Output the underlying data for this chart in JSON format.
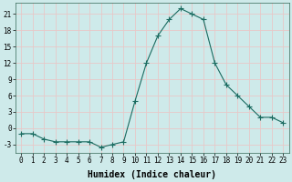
{
  "x": [
    0,
    1,
    2,
    3,
    4,
    5,
    6,
    7,
    8,
    9,
    10,
    11,
    12,
    13,
    14,
    15,
    16,
    17,
    18,
    19,
    20,
    21,
    22,
    23
  ],
  "y": [
    -1,
    -1,
    -2,
    -2.5,
    -2.5,
    -2.5,
    -2.5,
    -3.5,
    -3,
    -2.5,
    5,
    12,
    17,
    20,
    22,
    21,
    20,
    12,
    8,
    6,
    4,
    2,
    2,
    1
  ],
  "line_color": "#1a6b60",
  "marker": "+",
  "marker_size": 4,
  "background_color": "#ceeaea",
  "grid_color": "#e8c8c8",
  "xlabel": "Humidex (Indice chaleur)",
  "ylim": [
    -4.5,
    23
  ],
  "xlim": [
    -0.5,
    23.5
  ],
  "yticks": [
    -3,
    0,
    3,
    6,
    9,
    12,
    15,
    18,
    21
  ],
  "xticks": [
    0,
    1,
    2,
    3,
    4,
    5,
    6,
    7,
    8,
    9,
    10,
    11,
    12,
    13,
    14,
    15,
    16,
    17,
    18,
    19,
    20,
    21,
    22,
    23
  ],
  "xtick_labels": [
    "0",
    "1",
    "2",
    "3",
    "4",
    "5",
    "6",
    "7",
    "8",
    "9",
    "10",
    "11",
    "12",
    "13",
    "14",
    "15",
    "16",
    "17",
    "18",
    "19",
    "20",
    "21",
    "22",
    "23"
  ],
  "xlabel_fontsize": 7,
  "tick_fontsize": 5.5,
  "line_width": 0.8,
  "marker_edge_width": 0.8
}
